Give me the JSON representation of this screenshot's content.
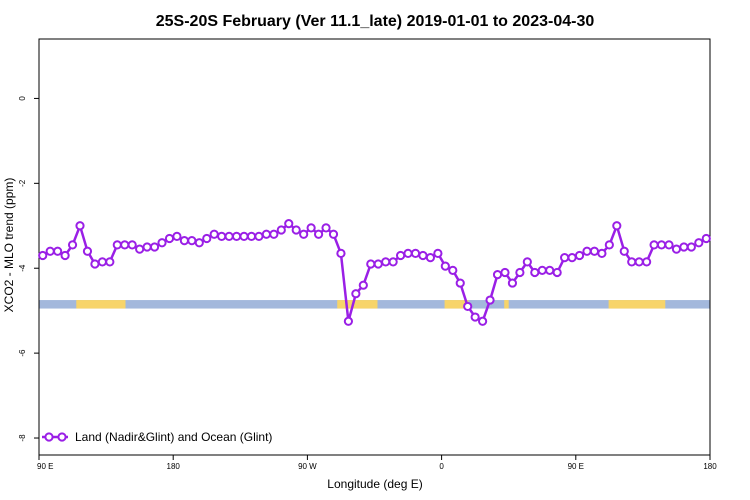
{
  "chart_data": {
    "type": "line",
    "title": "25S-20S February (Ver 11.1_late)   2019-01-01 to 2023-04-30",
    "xlabel": "Longitude (deg E)",
    "ylabel": "XCO2 - MLO trend (ppm)",
    "x_tick_labels": [
      "90 E",
      "180",
      "90 W",
      "0",
      "90 E",
      "180"
    ],
    "x_tick_positions": [
      90,
      180,
      270,
      360,
      450,
      540
    ],
    "xlim": [
      90,
      540
    ],
    "ylim": [
      -8.4,
      1.4
    ],
    "y_ticks": [
      0,
      -2,
      -4,
      -6,
      -8
    ],
    "grid": false,
    "legend_position": "bottom-left",
    "series": [
      {
        "name": "Land (Nadir&Glint) and Ocean (Glint)",
        "color": "#9a1fe6",
        "x": [
          92.5,
          97.5,
          102.5,
          107.5,
          112.5,
          117.5,
          122.5,
          127.5,
          132.5,
          137.5,
          142.5,
          147.5,
          152.5,
          157.5,
          162.5,
          167.5,
          172.5,
          177.5,
          182.5,
          187.5,
          192.5,
          197.5,
          202.5,
          207.5,
          212.5,
          217.5,
          222.5,
          227.5,
          232.5,
          237.5,
          242.5,
          247.5,
          252.5,
          257.5,
          262.5,
          267.5,
          272.5,
          277.5,
          282.5,
          287.5,
          292.5,
          297.5,
          302.5,
          307.5,
          312.5,
          317.5,
          322.5,
          327.5,
          332.5,
          337.5,
          342.5,
          347.5,
          352.5,
          357.5,
          362.5,
          367.5,
          372.5,
          377.5,
          382.5,
          387.5,
          392.5,
          397.5,
          402.5,
          407.5,
          412.5,
          417.5,
          422.5,
          427.5,
          432.5,
          437.5,
          442.5,
          447.5,
          452.5,
          457.5,
          462.5,
          467.5,
          472.5,
          477.5,
          482.5,
          487.5,
          492.5,
          497.5,
          502.5,
          507.5,
          512.5,
          517.5,
          522.5,
          527.5,
          532.5,
          537.5
        ],
        "y": [
          -3.7,
          -3.6,
          -3.6,
          -3.7,
          -3.45,
          -3.0,
          -3.6,
          -3.9,
          -3.85,
          -3.85,
          -3.45,
          -3.45,
          -3.45,
          -3.55,
          -3.5,
          -3.5,
          -3.4,
          -3.3,
          -3.25,
          -3.35,
          -3.35,
          -3.4,
          -3.3,
          -3.2,
          -3.25,
          -3.25,
          -3.25,
          -3.25,
          -3.25,
          -3.25,
          -3.2,
          -3.2,
          -3.1,
          -2.95,
          -3.1,
          -3.2,
          -3.05,
          -3.2,
          -3.05,
          -3.2,
          -3.65,
          -5.25,
          -4.6,
          -4.4,
          -3.9,
          -3.9,
          -3.85,
          -3.85,
          -3.7,
          -3.65,
          -3.65,
          -3.7,
          -3.75,
          -3.65,
          -3.95,
          -4.05,
          -4.35,
          -4.9,
          -5.15,
          -5.25,
          -4.75,
          -4.15,
          -4.1,
          -4.35,
          -4.1,
          -3.85,
          -4.1,
          -4.05,
          -4.05,
          -4.1,
          -3.75,
          -3.75,
          -3.7,
          -3.6,
          -3.6,
          -3.65,
          -3.45,
          -3.0,
          -3.6,
          -3.85,
          -3.85,
          -3.85,
          -3.45,
          -3.45,
          -3.45,
          -3.55,
          -3.5,
          -3.5,
          -3.4,
          -3.3
        ]
      }
    ],
    "land_ocean_band": {
      "y_range": [
        -4.75,
        -4.95
      ],
      "ocean_color": "#a3b8dc",
      "land_color": "#f7d46a",
      "land_lon_ranges": [
        [
          115,
          148
        ],
        [
          290,
          317
        ],
        [
          362,
          378
        ],
        [
          402,
          405
        ],
        [
          472,
          510
        ]
      ]
    }
  }
}
